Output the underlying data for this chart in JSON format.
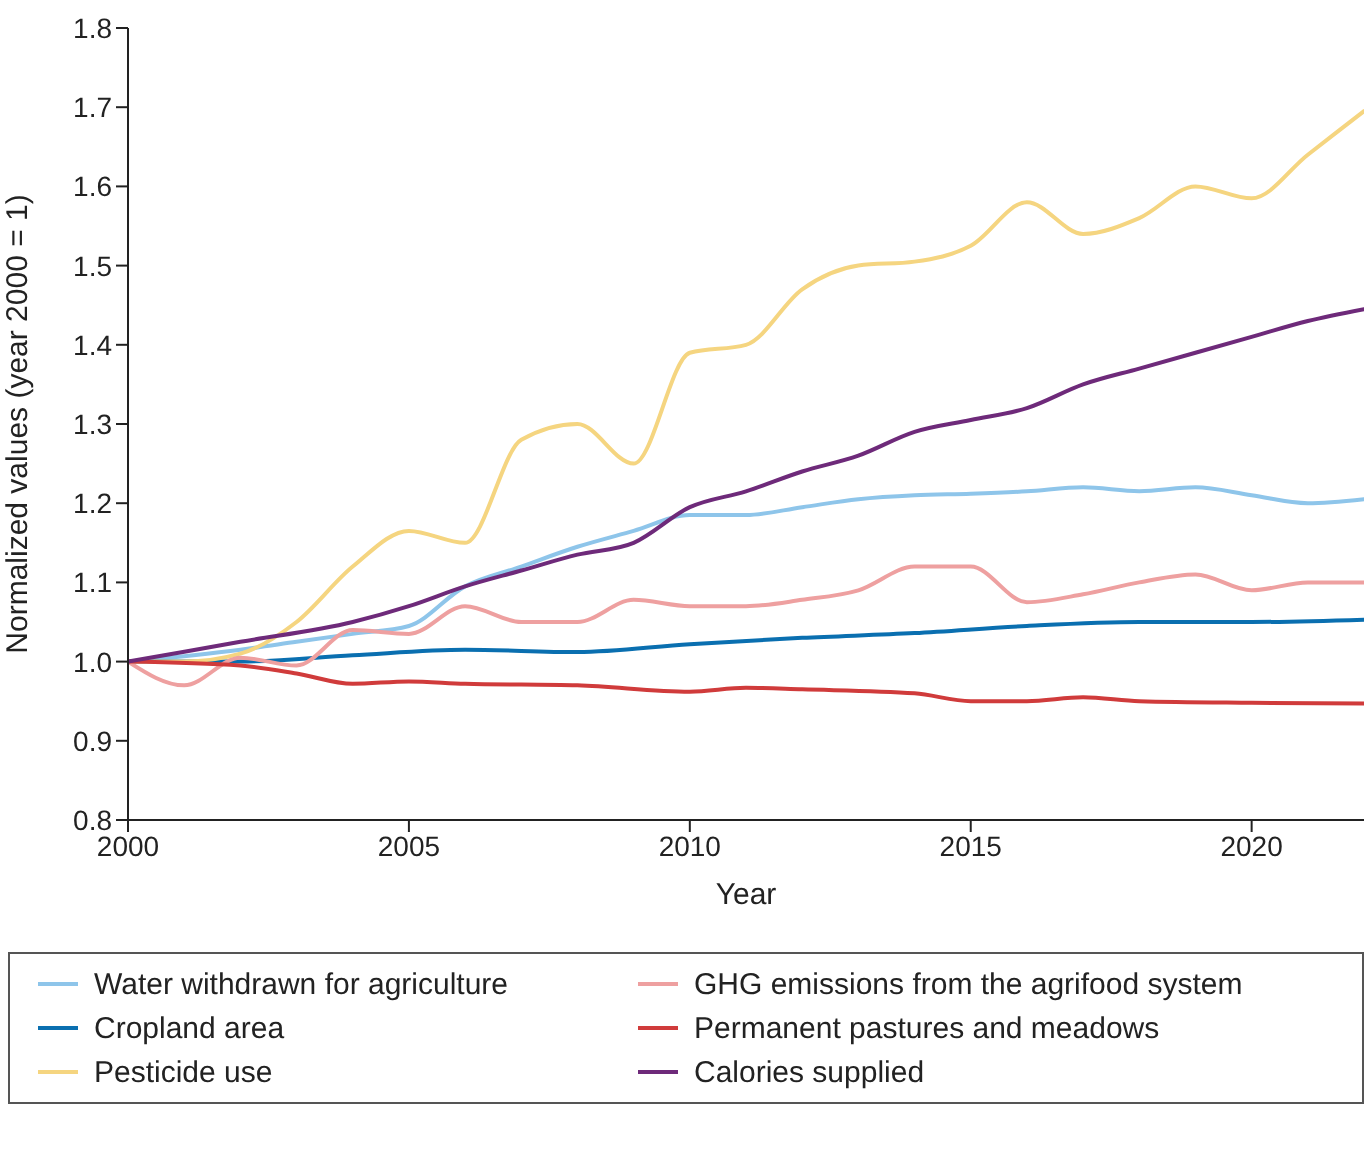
{
  "chart_data": {
    "type": "line",
    "xlabel": "Year",
    "ylabel": "Normalized values (year 2000 = 1)",
    "xlim": [
      2000,
      2022
    ],
    "xticks": [
      2000,
      2005,
      2010,
      2015,
      2020
    ],
    "ylim": [
      0.8,
      1.8
    ],
    "yticks": [
      0.8,
      0.9,
      {
        "value": 1,
        "label": "1.0"
      },
      1.1,
      1.2,
      1.3,
      1.4,
      1.5,
      1.6,
      1.7,
      1.8
    ],
    "grid": false,
    "legend": "bottom",
    "marker": "none",
    "line_style": "solid",
    "series": [
      {
        "name": "Water withdrawn for agriculture",
        "color": "#8ec5ea",
        "x": [
          2000,
          2002,
          2003,
          2004,
          2005,
          2006,
          2007,
          2008,
          2009,
          2010,
          2011,
          2012,
          2013,
          2014,
          2015,
          2016,
          2017,
          2018,
          2019,
          2020,
          2021,
          2022
        ],
        "values": [
          1.0,
          1.015,
          1.025,
          1.035,
          1.045,
          1.095,
          1.12,
          1.145,
          1.165,
          1.185,
          1.185,
          1.195,
          1.205,
          1.21,
          1.212,
          1.215,
          1.22,
          1.215,
          1.22,
          1.21,
          1.2,
          1.205
        ]
      },
      {
        "name": "Cropland area",
        "color": "#0a6fb0",
        "x": [
          2000,
          2002,
          2004,
          2006,
          2008,
          2010,
          2012,
          2014,
          2016,
          2018,
          2020,
          2022
        ],
        "values": [
          1.0,
          1.0,
          1.008,
          1.015,
          1.012,
          1.022,
          1.03,
          1.036,
          1.045,
          1.05,
          1.05,
          1.053
        ]
      },
      {
        "name": "Pesticide use",
        "color": "#f5d580",
        "x": [
          2000,
          2001,
          2002,
          2003,
          2004,
          2005,
          2006,
          2007,
          2008,
          2009,
          2010,
          2011,
          2012,
          2013,
          2014,
          2015,
          2016,
          2017,
          2018,
          2019,
          2020,
          2021,
          2022
        ],
        "values": [
          1.0,
          1.0,
          1.01,
          1.05,
          1.12,
          1.165,
          1.15,
          1.28,
          1.3,
          1.25,
          1.39,
          1.4,
          1.47,
          1.5,
          1.505,
          1.525,
          1.58,
          1.54,
          1.56,
          1.6,
          1.585,
          1.64,
          1.695
        ]
      },
      {
        "name": "GHG emissions from the agrifood system",
        "color": "#eea0a0",
        "x": [
          2000,
          2001,
          2002,
          2003,
          2004,
          2005,
          2006,
          2007,
          2008,
          2009,
          2010,
          2011,
          2012,
          2013,
          2014,
          2015,
          2016,
          2017,
          2018,
          2019,
          2020,
          2021,
          2022
        ],
        "values": [
          1.0,
          0.97,
          1.005,
          0.995,
          1.04,
          1.035,
          1.07,
          1.05,
          1.05,
          1.078,
          1.07,
          1.07,
          1.078,
          1.09,
          1.12,
          1.12,
          1.075,
          1.085,
          1.1,
          1.11,
          1.09,
          1.1,
          1.1
        ]
      },
      {
        "name": "Permanent pastures and meadows",
        "color": "#d03b3b",
        "x": [
          2000,
          2002,
          2003,
          2004,
          2005,
          2006,
          2008,
          2010,
          2011,
          2012,
          2014,
          2015,
          2016,
          2017,
          2018,
          2020,
          2022
        ],
        "values": [
          1.0,
          0.995,
          0.985,
          0.972,
          0.975,
          0.972,
          0.97,
          0.962,
          0.967,
          0.965,
          0.96,
          0.95,
          0.95,
          0.955,
          0.95,
          0.948,
          0.947
        ]
      },
      {
        "name": "Calories supplied",
        "color": "#6e2a7a",
        "x": [
          2000,
          2002,
          2004,
          2005,
          2006,
          2007,
          2008,
          2009,
          2010,
          2011,
          2012,
          2013,
          2014,
          2015,
          2016,
          2017,
          2018,
          2019,
          2020,
          2021,
          2022
        ],
        "values": [
          1.0,
          1.025,
          1.05,
          1.07,
          1.095,
          1.115,
          1.135,
          1.15,
          1.195,
          1.215,
          1.24,
          1.26,
          1.29,
          1.305,
          1.32,
          1.35,
          1.37,
          1.39,
          1.41,
          1.43,
          1.445
        ]
      }
    ]
  }
}
